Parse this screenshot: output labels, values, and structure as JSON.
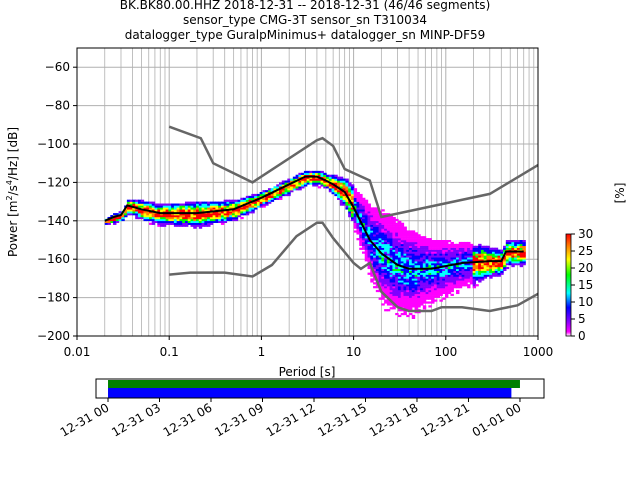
{
  "title_lines": [
    "BK.BK80.00.HHZ   2018-12-31 -- 2018-12-31  (46/46 segments)",
    "sensor_type CMG-3T sensor_sn T310034",
    "datalogger_type GuralpMinimus+ datalogger_sn MINP-DF59"
  ],
  "chart_data": {
    "type": "heatmap",
    "title": "BK.BK80.00.HHZ   2018-12-31 -- 2018-12-31  (46/46 segments)",
    "xlabel": "Period [s]",
    "ylabel": "Power [m²/s⁴/Hz] [dB]",
    "xscale": "log",
    "xlim": [
      0.01,
      1000
    ],
    "ylim": [
      -200,
      -50
    ],
    "xticks": [
      "0.01",
      "0.1",
      "1",
      "10",
      "100",
      "1000"
    ],
    "xtick_values": [
      0.01,
      0.1,
      1,
      10,
      100,
      1000
    ],
    "yticks": [
      "−60",
      "−80",
      "−100",
      "−120",
      "−140",
      "−160",
      "−180",
      "−200"
    ],
    "ytick_values": [
      -60,
      -80,
      -100,
      -120,
      -140,
      -160,
      -180,
      -200
    ],
    "grid": true,
    "colorbar": {
      "label": "[%]",
      "ticks": [
        "0",
        "5",
        "10",
        "15",
        "20",
        "25",
        "30"
      ],
      "range": [
        0,
        30
      ],
      "colors": [
        "#ffffff",
        "#ff00ff",
        "#7f00ff",
        "#0000ff",
        "#00ffff",
        "#00ff00",
        "#ffff00",
        "#ff8000",
        "#ff0000"
      ]
    },
    "mean_curve": {
      "periods": [
        0.02,
        0.025,
        0.03,
        0.035,
        0.05,
        0.08,
        0.2,
        0.5,
        1,
        2,
        3,
        4,
        5,
        6,
        8,
        10,
        15,
        20,
        30,
        40,
        70,
        150,
        300,
        400,
        450,
        700
      ],
      "db": [
        -140,
        -138,
        -137,
        -132,
        -134,
        -136,
        -136,
        -134,
        -128,
        -121,
        -117,
        -117,
        -119,
        -121,
        -125,
        -133,
        -150,
        -157,
        -163,
        -165,
        -165,
        -162,
        -161,
        -161,
        -156,
        -156
      ],
      "spread_db": [
        1,
        2,
        2,
        3,
        4,
        4,
        5,
        4,
        3,
        3,
        3,
        3,
        3,
        4,
        6,
        8,
        14,
        18,
        18,
        16,
        12,
        9,
        6,
        5,
        5,
        5
      ]
    },
    "high_noise_model": {
      "periods": [
        0.1,
        0.22,
        0.3,
        0.8,
        4,
        4.6,
        6,
        8,
        15,
        20,
        300,
        1000
      ],
      "db": [
        -91,
        -97,
        -110,
        -120,
        -98,
        -97,
        -101,
        -113,
        -119,
        -138,
        -126,
        -111
      ]
    },
    "low_noise_model": {
      "periods": [
        0.1,
        0.17,
        0.4,
        0.8,
        1.3,
        2.4,
        4,
        4.6,
        6,
        10,
        12,
        15,
        20,
        30,
        40,
        70,
        90,
        150,
        300,
        600,
        1000
      ],
      "db": [
        -168,
        -167,
        -167,
        -169,
        -163,
        -148,
        -141,
        -141,
        -149,
        -162,
        -165,
        -162,
        -177,
        -185,
        -187,
        -187,
        -185,
        -185,
        -187,
        -184,
        -178
      ]
    },
    "timeline": {
      "ticks": [
        "12-31 00",
        "12-31 03",
        "12-31 06",
        "12-31 09",
        "12-31 12",
        "12-31 15",
        "12-31 18",
        "12-31 21",
        "01-01 00"
      ],
      "range_hours": [
        -0.7,
        25.4
      ],
      "data_coverage_hours": [
        0,
        24
      ],
      "psd_coverage_hours": [
        0,
        23.5
      ],
      "data_color": "#008000",
      "psd_color": "#0000ff"
    }
  }
}
